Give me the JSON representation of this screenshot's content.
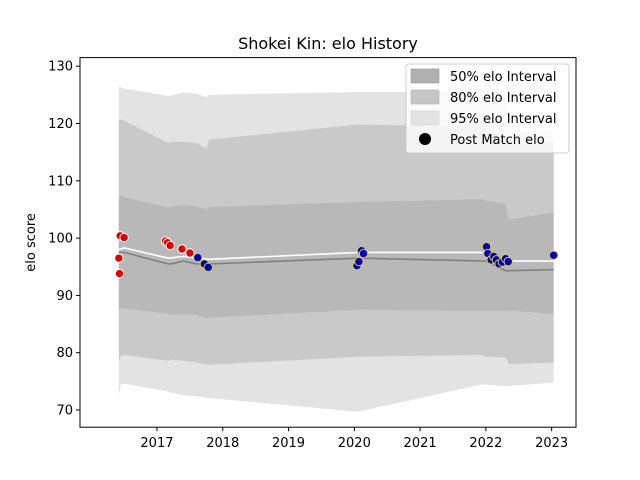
{
  "chart_data": {
    "type": "line",
    "title": "Shokei Kin: elo History",
    "xlabel": "",
    "ylabel": "elo score",
    "xlim": [
      2015.83,
      2023.37
    ],
    "ylim": [
      67,
      131.5
    ],
    "x_ticks": [
      2017,
      2018,
      2019,
      2020,
      2021,
      2022,
      2023
    ],
    "y_ticks": [
      70,
      80,
      90,
      100,
      110,
      120,
      130
    ],
    "grid": false,
    "legend_position": "top-right",
    "legend": [
      {
        "label": "50% elo Interval",
        "color": "#b0b0b0"
      },
      {
        "label": "80% elo Interval",
        "color": "#c6c6c6"
      },
      {
        "label": "95% elo Interval",
        "color": "#e3e3e3"
      },
      {
        "label": "Post Match elo",
        "color": "#000000"
      }
    ],
    "band_x": [
      2016.42,
      2016.45,
      2016.5,
      2017.17,
      2017.22,
      2017.4,
      2017.6,
      2017.75,
      2017.8,
      2020.05,
      2021.95,
      2022.0,
      2022.3,
      2022.35,
      2023.03
    ],
    "band_95": {
      "upper": [
        126.5,
        126.3,
        126.1,
        124.8,
        124.9,
        125.4,
        125.2,
        124.6,
        125.0,
        125.5,
        125.5,
        125.4,
        125.2,
        118.5,
        118.6
      ],
      "lower": [
        72.5,
        74.5,
        74.6,
        73.2,
        73.0,
        72.6,
        72.4,
        72.1,
        72.1,
        69.7,
        74.5,
        74.4,
        74.2,
        74.2,
        74.8
      ]
    },
    "band_80": {
      "upper": [
        120.5,
        120.7,
        120.5,
        116.6,
        116.8,
        116.8,
        116.6,
        115.6,
        117.2,
        119.8,
        119.5,
        119.0,
        117.6,
        116.6,
        116.7
      ],
      "lower": [
        78.5,
        79.4,
        79.6,
        78.6,
        78.8,
        78.6,
        78.3,
        77.9,
        77.9,
        79.3,
        79.6,
        79.3,
        79.2,
        78.0,
        78.3
      ]
    },
    "band_50": {
      "upper": [
        107.0,
        107.5,
        107.2,
        105.3,
        105.5,
        105.8,
        105.6,
        105.0,
        105.4,
        106.3,
        106.8,
        106.5,
        106.0,
        103.2,
        104.5
      ],
      "lower": [
        87.5,
        87.8,
        87.7,
        86.8,
        86.6,
        86.7,
        86.6,
        86.0,
        86.1,
        87.5,
        87.3,
        87.3,
        87.3,
        87.4,
        86.7
      ]
    },
    "median_line": {
      "x": [
        2016.42,
        2016.5,
        2017.17,
        2017.22,
        2017.4,
        2017.6,
        2017.8,
        2020.05,
        2022.0,
        2022.3,
        2023.03
      ],
      "y": [
        97.5,
        97.5,
        95.5,
        95.5,
        96.0,
        95.5,
        95.5,
        96.5,
        96.0,
        94.3,
        94.5
      ]
    },
    "mean_line": {
      "x": [
        2016.42,
        2016.5,
        2017.17,
        2017.4,
        2017.8,
        2020.05,
        2022.0,
        2022.3,
        2023.03
      ],
      "y": [
        98.0,
        98.3,
        96.5,
        96.8,
        96.3,
        97.5,
        97.5,
        96.0,
        96.0
      ]
    },
    "series": [
      {
        "name": "Post Match elo",
        "x": [
          2016.42,
          2016.43,
          2016.44,
          2016.5,
          2017.13,
          2017.16,
          2017.2,
          2017.38,
          2017.5
        ],
        "y": [
          96.5,
          93.8,
          100.4,
          100.1,
          99.5,
          99.2,
          98.7,
          98.1,
          97.4
        ],
        "color": "#dd0000"
      },
      {
        "name": "",
        "x": [
          2017.62,
          2017.72,
          2017.78,
          2020.04,
          2020.07,
          2020.11,
          2020.14,
          2022.01,
          2022.03,
          2022.08,
          2022.12,
          2022.16,
          2022.2,
          2022.25,
          2022.3,
          2022.34,
          2023.03
        ],
        "y": [
          96.6,
          95.5,
          94.9,
          95.2,
          95.9,
          97.8,
          97.3,
          98.5,
          97.3,
          96.2,
          96.8,
          96.2,
          95.5,
          95.8,
          96.4,
          95.9,
          97.0
        ],
        "color": "#0000aa"
      }
    ]
  }
}
